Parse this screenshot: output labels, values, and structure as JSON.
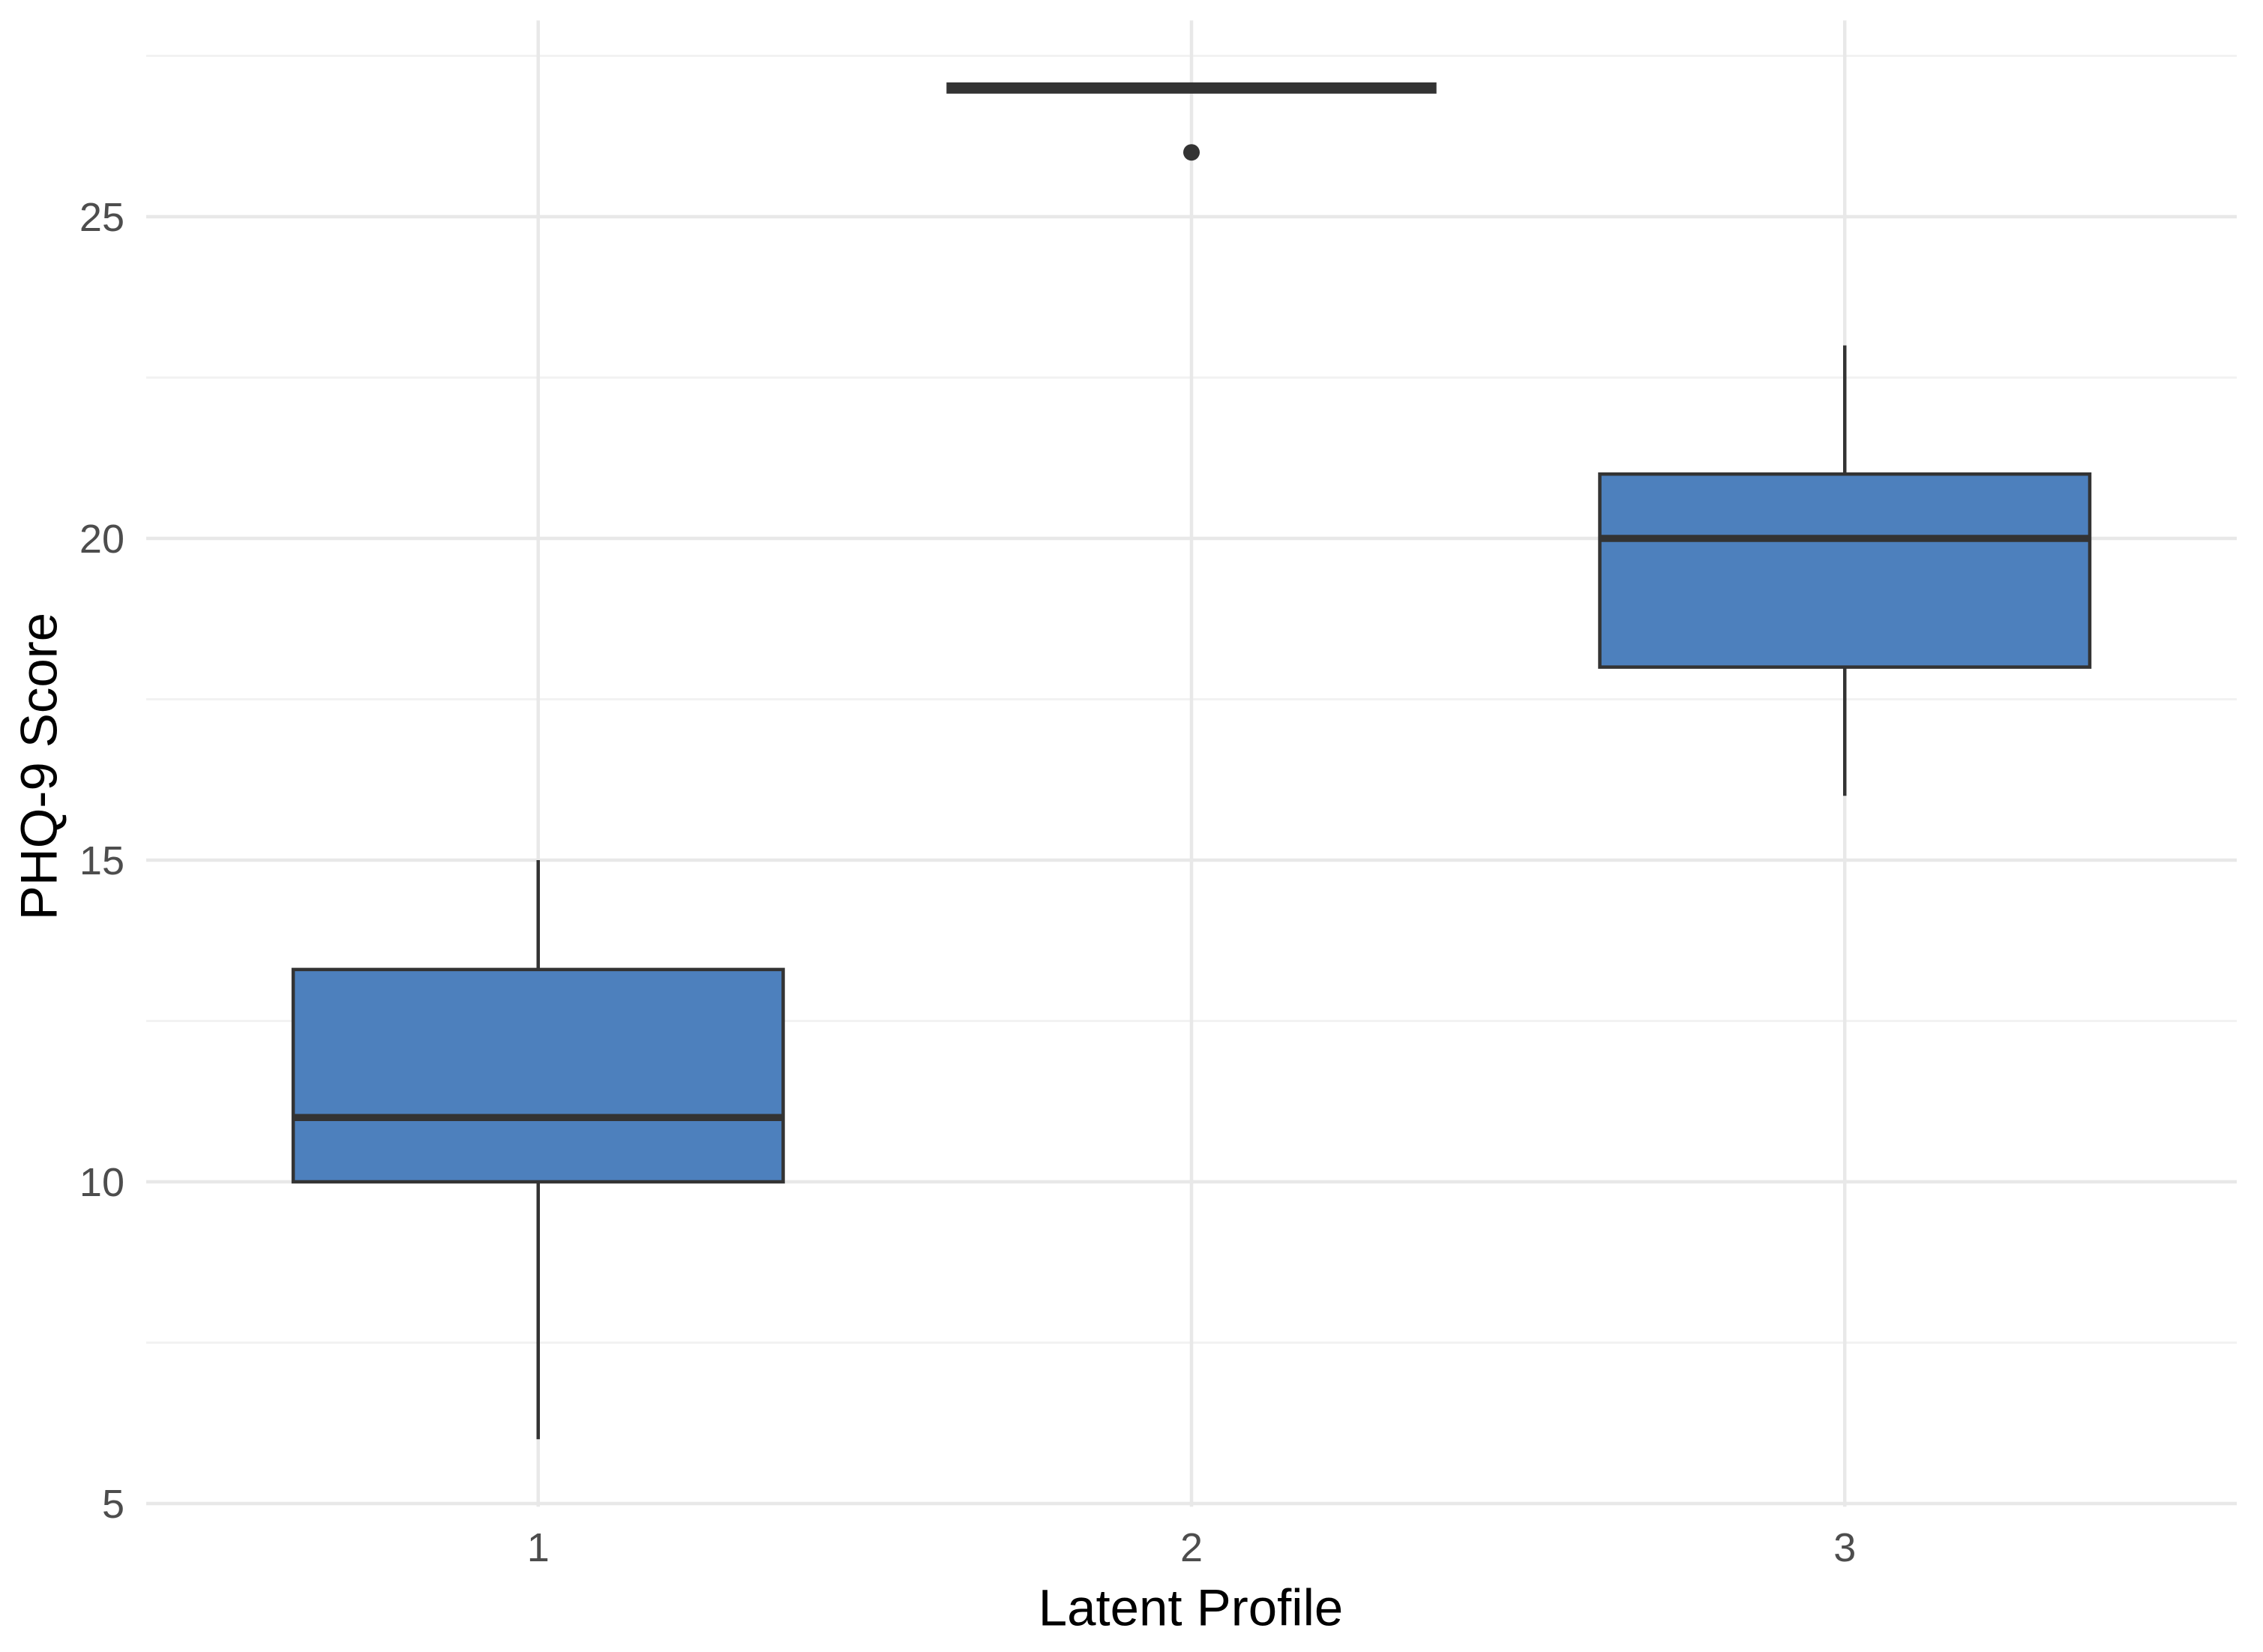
{
  "chart_data": {
    "type": "boxplot",
    "title": "",
    "xlabel": "Latent Profile",
    "ylabel": "PHQ-9 Score",
    "categories": [
      "1",
      "2",
      "3"
    ],
    "x_tick_labels": [
      "1",
      "2",
      "3"
    ],
    "y_tick_labels": [
      "5",
      "10",
      "15",
      "20",
      "25"
    ],
    "y_breaks_major": [
      5,
      10,
      15,
      20,
      25
    ],
    "y_breaks_minor": [
      7.5,
      12.5,
      17.5,
      22.5,
      27.5
    ],
    "ylim": [
      4.95,
      28.05
    ],
    "grid": "horizontal major+minor, vertical major per category",
    "legend": false,
    "series": [
      {
        "category": "1",
        "whisker_low": 6,
        "q1": 10,
        "median": 11,
        "q3": 13.3,
        "whisker_high": 15,
        "outliers": []
      },
      {
        "category": "2",
        "whisker_low": 27,
        "q1": 27,
        "median": 27,
        "q3": 27,
        "whisker_high": 27,
        "outliers": [
          26
        ]
      },
      {
        "category": "3",
        "whisker_low": 16,
        "q1": 18,
        "median": 20,
        "q3": 21,
        "whisker_high": 23,
        "outliers": []
      }
    ],
    "colors": {
      "box_fill": "#4d80bd",
      "box_stroke": "#333333",
      "median": "#333333",
      "whisker": "#333333",
      "outlier": "#333333",
      "grid_major": "#e8e8e8",
      "grid_minor": "#f2f2f2",
      "tick_label": "#4d4d4d",
      "axis_title": "#000000",
      "background": "#ffffff"
    }
  }
}
